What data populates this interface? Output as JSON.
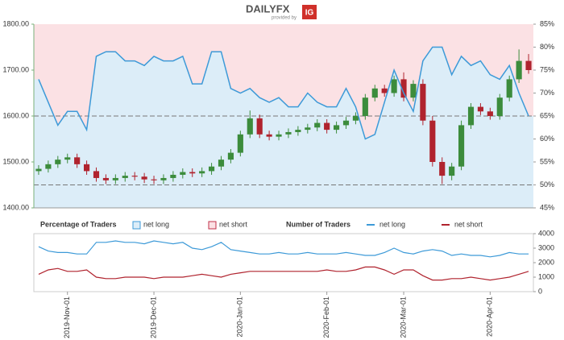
{
  "header": {
    "logo": "DAILYFX",
    "subtitle": "provided by",
    "badge": "IG"
  },
  "chart_data": [
    {
      "type": "candlestick",
      "legend_title": "Percentage of Traders",
      "open": [
        1480,
        1485,
        1495,
        1505,
        1510,
        1495,
        1480,
        1465,
        1460,
        1465,
        1470,
        1468,
        1462,
        1460,
        1465,
        1472,
        1478,
        1475,
        1480,
        1490,
        1505,
        1520,
        1560,
        1595,
        1560,
        1555,
        1560,
        1565,
        1570,
        1575,
        1585,
        1570,
        1580,
        1590,
        1600,
        1640,
        1660,
        1650,
        1680,
        1640,
        1670,
        1590,
        1500,
        1470,
        1490,
        1580,
        1620,
        1610,
        1600,
        1640,
        1680,
        1720
      ],
      "high": [
        1493,
        1503,
        1513,
        1518,
        1518,
        1503,
        1488,
        1473,
        1473,
        1478,
        1478,
        1476,
        1470,
        1473,
        1480,
        1486,
        1486,
        1488,
        1498,
        1513,
        1528,
        1568,
        1612,
        1603,
        1568,
        1568,
        1573,
        1578,
        1583,
        1593,
        1593,
        1588,
        1598,
        1608,
        1648,
        1668,
        1668,
        1688,
        1695,
        1678,
        1680,
        1600,
        1510,
        1498,
        1590,
        1628,
        1628,
        1618,
        1648,
        1688,
        1745,
        1735
      ],
      "low": [
        1472,
        1477,
        1487,
        1497,
        1487,
        1472,
        1457,
        1452,
        1452,
        1457,
        1460,
        1454,
        1452,
        1452,
        1457,
        1464,
        1467,
        1467,
        1472,
        1482,
        1497,
        1512,
        1552,
        1552,
        1547,
        1547,
        1552,
        1557,
        1562,
        1567,
        1562,
        1562,
        1572,
        1582,
        1592,
        1632,
        1642,
        1642,
        1632,
        1632,
        1580,
        1490,
        1452,
        1460,
        1482,
        1572,
        1602,
        1592,
        1592,
        1632,
        1672,
        1692
      ],
      "close": [
        1485,
        1495,
        1505,
        1510,
        1495,
        1480,
        1465,
        1460,
        1465,
        1470,
        1468,
        1462,
        1460,
        1465,
        1472,
        1478,
        1475,
        1480,
        1490,
        1505,
        1520,
        1560,
        1595,
        1560,
        1555,
        1560,
        1565,
        1570,
        1575,
        1585,
        1570,
        1580,
        1590,
        1600,
        1640,
        1660,
        1650,
        1680,
        1640,
        1670,
        1590,
        1500,
        1470,
        1490,
        1580,
        1620,
        1610,
        1600,
        1640,
        1680,
        1720,
        1700
      ],
      "up_color": "#3c8c3c",
      "down_color": "#b0232e",
      "series": [
        {
          "name": "net long",
          "color": "#3d9ad8",
          "fill": "#dcedf8",
          "axis": "y2",
          "values": [
            73,
            68,
            63,
            66,
            66,
            62,
            78,
            79,
            79,
            77,
            77,
            76,
            78,
            77,
            77,
            78,
            72,
            72,
            79,
            79,
            71,
            70,
            71,
            69,
            68,
            69,
            67,
            67,
            70,
            68,
            67,
            67,
            71,
            67,
            60,
            61,
            68,
            75,
            70,
            66,
            77,
            80,
            80,
            74,
            78,
            76,
            77,
            74,
            73,
            76,
            70,
            65
          ]
        }
      ],
      "short_area": {
        "name": "net short",
        "color": "#c0304a",
        "fill": "#fbe1e4"
      },
      "reference_lines": [
        65,
        50
      ],
      "ylim": [
        1400,
        1800
      ],
      "yticks": [
        {
          "value": 1400,
          "label": "1400.00"
        },
        {
          "value": 1500,
          "label": "1500.00"
        },
        {
          "value": 1600,
          "label": "1600.00"
        },
        {
          "value": 1700,
          "label": "1700.00"
        },
        {
          "value": 1800,
          "label": "1800.00"
        }
      ],
      "y2lim": [
        45,
        85
      ],
      "y2ticks": [
        {
          "value": 45,
          "label": "45%"
        },
        {
          "value": 50,
          "label": "50%"
        },
        {
          "value": 55,
          "label": "55%"
        },
        {
          "value": 60,
          "label": "60%"
        },
        {
          "value": 65,
          "label": "65%"
        },
        {
          "value": 70,
          "label": "70%"
        },
        {
          "value": 75,
          "label": "75%"
        },
        {
          "value": 80,
          "label": "80%"
        },
        {
          "value": 85,
          "label": "85%"
        }
      ]
    },
    {
      "type": "line",
      "legend_title": "Number of Traders",
      "categories": [
        null,
        null,
        null,
        "2019-Nov-01",
        null,
        null,
        null,
        null,
        null,
        null,
        null,
        null,
        "2019-Dec-01",
        null,
        null,
        null,
        null,
        null,
        null,
        null,
        null,
        "2020-Jan-01",
        null,
        null,
        null,
        null,
        null,
        null,
        null,
        null,
        "2020-Feb-01",
        null,
        null,
        null,
        null,
        null,
        null,
        null,
        "2020-Mar-01",
        null,
        null,
        null,
        null,
        null,
        null,
        null,
        null,
        "2020-Apr-01",
        null,
        null,
        null,
        null
      ],
      "series": [
        {
          "name": "net long",
          "color": "#3d9ad8",
          "values": [
            3100,
            2800,
            2700,
            2700,
            2600,
            2600,
            3400,
            3400,
            3500,
            3400,
            3400,
            3300,
            3500,
            3400,
            3300,
            3400,
            3000,
            2900,
            3100,
            3400,
            2900,
            2800,
            2700,
            2600,
            2600,
            2700,
            2600,
            2600,
            2700,
            2600,
            2600,
            2600,
            2700,
            2600,
            2500,
            2500,
            2700,
            3000,
            2700,
            2600,
            2800,
            2900,
            2800,
            2500,
            2600,
            2500,
            2500,
            2400,
            2500,
            2700,
            2600,
            2600
          ]
        },
        {
          "name": "net short",
          "color": "#b0232e",
          "values": [
            1200,
            1500,
            1600,
            1400,
            1400,
            1500,
            1000,
            900,
            900,
            1000,
            1000,
            1000,
            900,
            1000,
            1000,
            1000,
            1100,
            1200,
            1100,
            1000,
            1200,
            1300,
            1400,
            1400,
            1400,
            1400,
            1400,
            1400,
            1400,
            1400,
            1500,
            1400,
            1400,
            1500,
            1700,
            1700,
            1500,
            1200,
            1500,
            1500,
            1100,
            800,
            800,
            900,
            900,
            1000,
            900,
            800,
            900,
            1000,
            1200,
            1400
          ]
        }
      ],
      "ylim": [
        0,
        4000
      ],
      "yticks": [
        0,
        1000,
        2000,
        3000,
        4000
      ]
    }
  ]
}
